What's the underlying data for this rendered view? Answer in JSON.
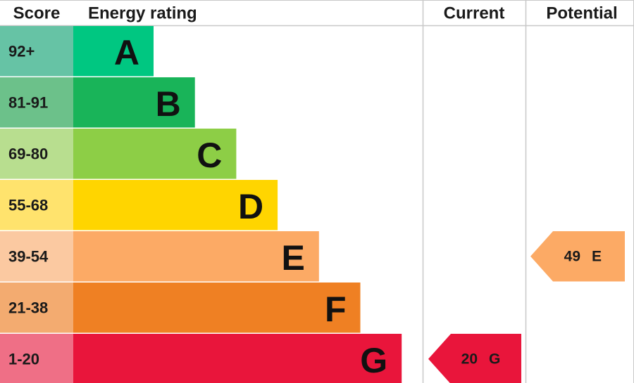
{
  "headers": [
    "Score",
    "Energy rating",
    "Current",
    "Potential"
  ],
  "bands": [
    {
      "score": "92+",
      "letter": "A",
      "color": "#00c781",
      "score_color": "#66c3a5"
    },
    {
      "score": "81-91",
      "letter": "B",
      "color": "#19b459",
      "score_color": "#6cc18a"
    },
    {
      "score": "69-80",
      "letter": "C",
      "color": "#8dce46",
      "score_color": "#b8de8f"
    },
    {
      "score": "55-68",
      "letter": "D",
      "color": "#ffd500",
      "score_color": "#ffe36d"
    },
    {
      "score": "39-54",
      "letter": "E",
      "color": "#fcaa65",
      "score_color": "#fbc9a1"
    },
    {
      "score": "21-38",
      "letter": "F",
      "color": "#ef8023",
      "score_color": "#f3ab70"
    },
    {
      "score": "1-20",
      "letter": "G",
      "color": "#e9153b",
      "score_color": "#ef6f86"
    }
  ],
  "current": {
    "value": 20,
    "letter": "G",
    "color": "#e9153b"
  },
  "potential": {
    "value": 49,
    "letter": "E",
    "color": "#fcaa65"
  }
}
